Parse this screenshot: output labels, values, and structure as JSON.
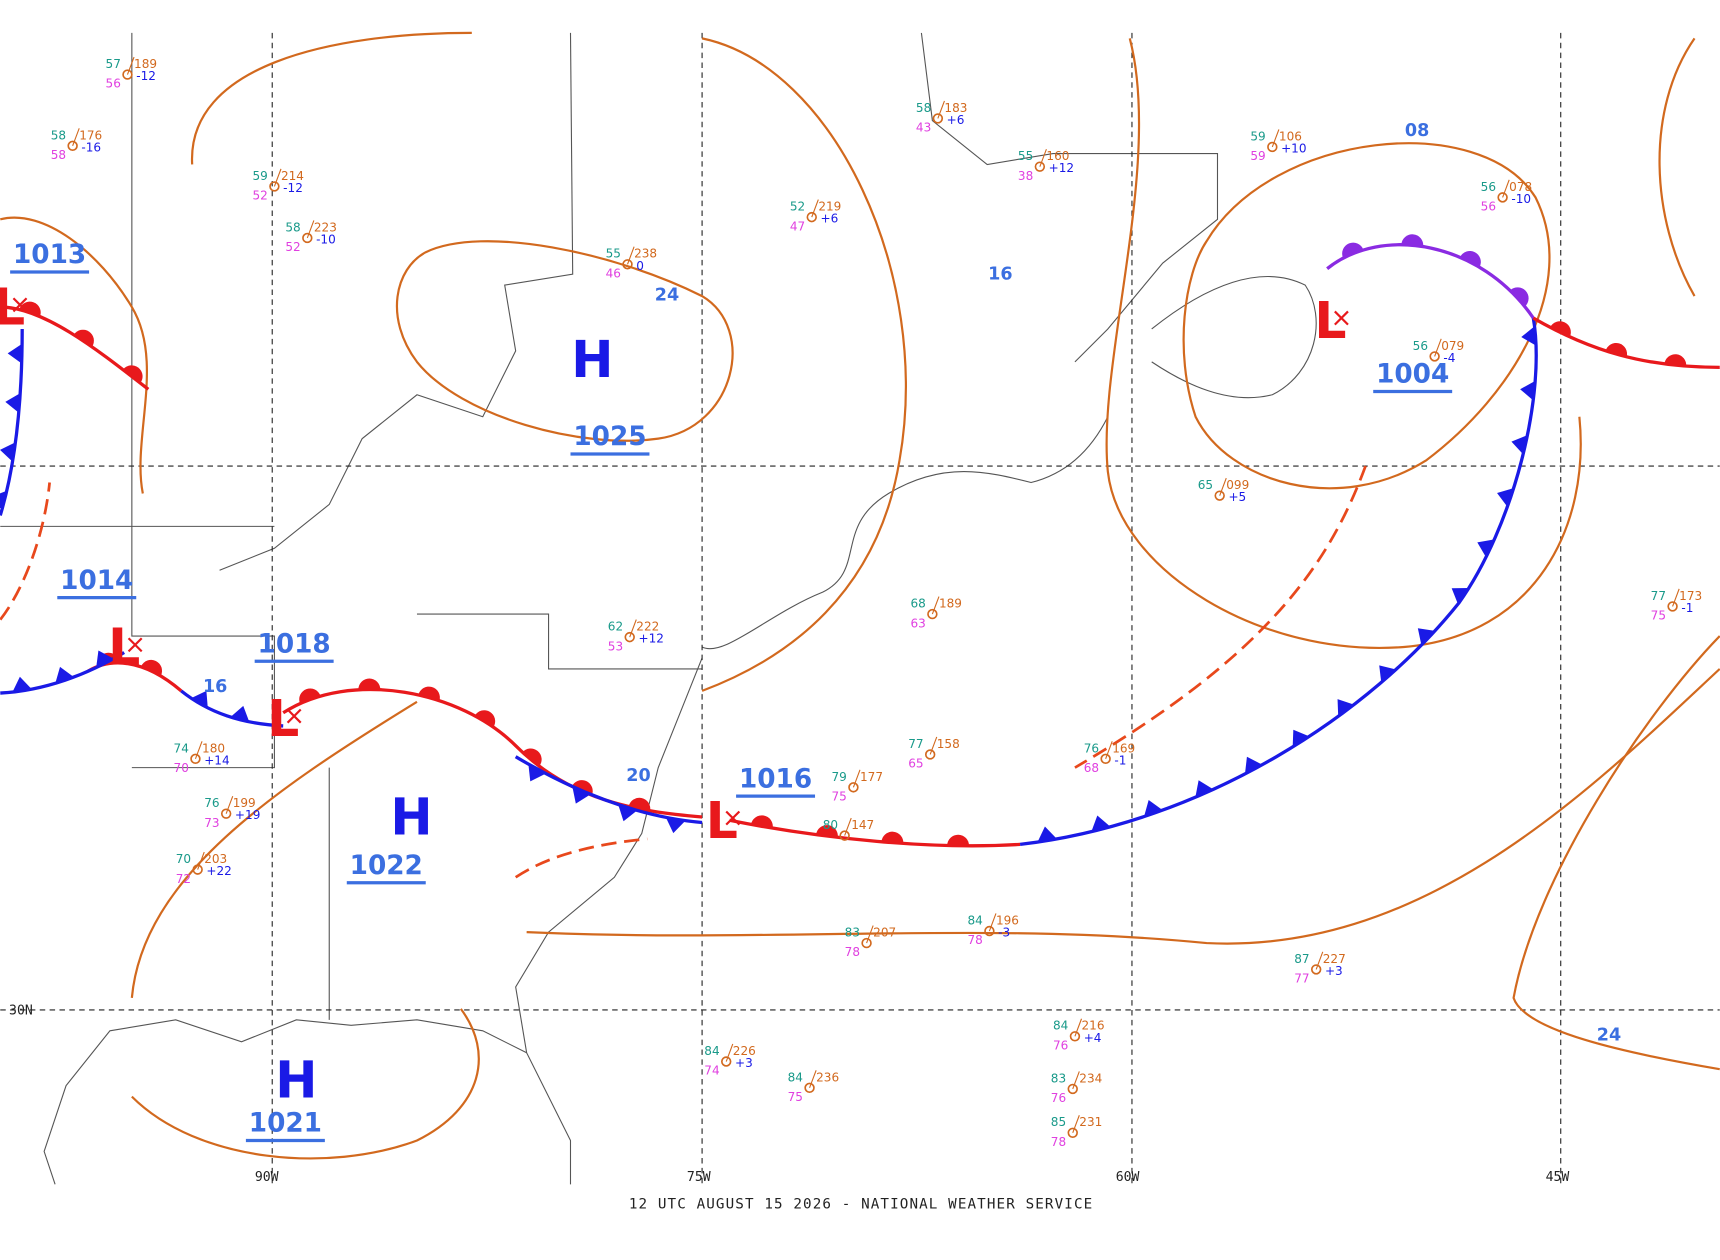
{
  "footer": "12 UTC AUGUST 15 2026 - NATIONAL WEATHER SERVICE",
  "grid_labels": {
    "longitudes": [
      "90W",
      "75W",
      "60W",
      "45W"
    ],
    "latitudes": [
      "30N"
    ]
  },
  "pressure_centers": [
    {
      "symbol": "L",
      "value": "1013"
    },
    {
      "symbol": "L",
      "value": "1014"
    },
    {
      "symbol": "L",
      "value": "1018"
    },
    {
      "symbol": "H",
      "value": "1025"
    },
    {
      "symbol": "H",
      "value": "1022"
    },
    {
      "symbol": "H",
      "value": "1021"
    },
    {
      "symbol": "L",
      "value": "1016"
    },
    {
      "symbol": "L",
      "value": "1004"
    }
  ],
  "isobar_labels": [
    "24",
    "08",
    "16",
    "16",
    "20",
    "24"
  ],
  "stations": [
    {
      "temp": "57",
      "pressure": "189",
      "dew": "56",
      "change": "-12"
    },
    {
      "temp": "58",
      "pressure": "176",
      "dew": "58",
      "change": "-16"
    },
    {
      "temp": "59",
      "pressure": "214",
      "dew": "52",
      "change": "-12"
    },
    {
      "temp": "58",
      "pressure": "223",
      "dew": "52",
      "change": "-10"
    },
    {
      "temp": "58",
      "pressure": "183",
      "dew": "43",
      "change": "+6"
    },
    {
      "temp": "52",
      "pressure": "219",
      "dew": "47",
      "change": "+6"
    },
    {
      "temp": "55",
      "pressure": "160",
      "dew": "38",
      "change": "+12"
    },
    {
      "temp": "59",
      "pressure": "106",
      "dew": "59",
      "change": "+10"
    },
    {
      "temp": "56",
      "pressure": "078",
      "dew": "56",
      "change": "-10"
    },
    {
      "temp": "56",
      "pressure": "079",
      "change": "-4"
    },
    {
      "temp": "65",
      "pressure": "099",
      "change": "+5"
    },
    {
      "temp": "68",
      "pressure": "189",
      "dew": "63"
    },
    {
      "temp": "77",
      "pressure": "158",
      "dew": "65"
    },
    {
      "temp": "79",
      "pressure": "177",
      "dew": "75"
    },
    {
      "temp": "80",
      "pressure": "147"
    },
    {
      "temp": "84",
      "pressure": "196",
      "dew": "78",
      "change": "-3"
    },
    {
      "temp": "83",
      "pressure": "207",
      "dew": "78"
    },
    {
      "temp": "87",
      "pressure": "227",
      "dew": "77",
      "change": "+3"
    },
    {
      "temp": "84",
      "pressure": "216",
      "dew": "76",
      "change": "+4"
    },
    {
      "temp": "84",
      "pressure": "226",
      "dew": "74",
      "change": "+3"
    },
    {
      "temp": "84",
      "pressure": "236",
      "dew": "75"
    },
    {
      "temp": "83",
      "pressure": "234",
      "dew": "76"
    },
    {
      "temp": "85",
      "pressure": "231",
      "dew": "78"
    },
    {
      "temp": "77",
      "pressure": "173",
      "dew": "75",
      "change": "-1"
    },
    {
      "temp": "76",
      "pressure": "169",
      "dew": "68",
      "change": "-1"
    },
    {
      "temp": "74",
      "pressure": "180",
      "dew": "70",
      "change": "+14"
    },
    {
      "temp": "76",
      "pressure": "199",
      "dew": "73",
      "change": "+19"
    },
    {
      "temp": "70",
      "pressure": "203",
      "dew": "72",
      "change": "+22"
    },
    {
      "temp": "62",
      "pressure": "222",
      "dew": "53",
      "change": "+12"
    },
    {
      "temp": "55",
      "pressure": "238",
      "dew": "46",
      "change": "0"
    }
  ]
}
